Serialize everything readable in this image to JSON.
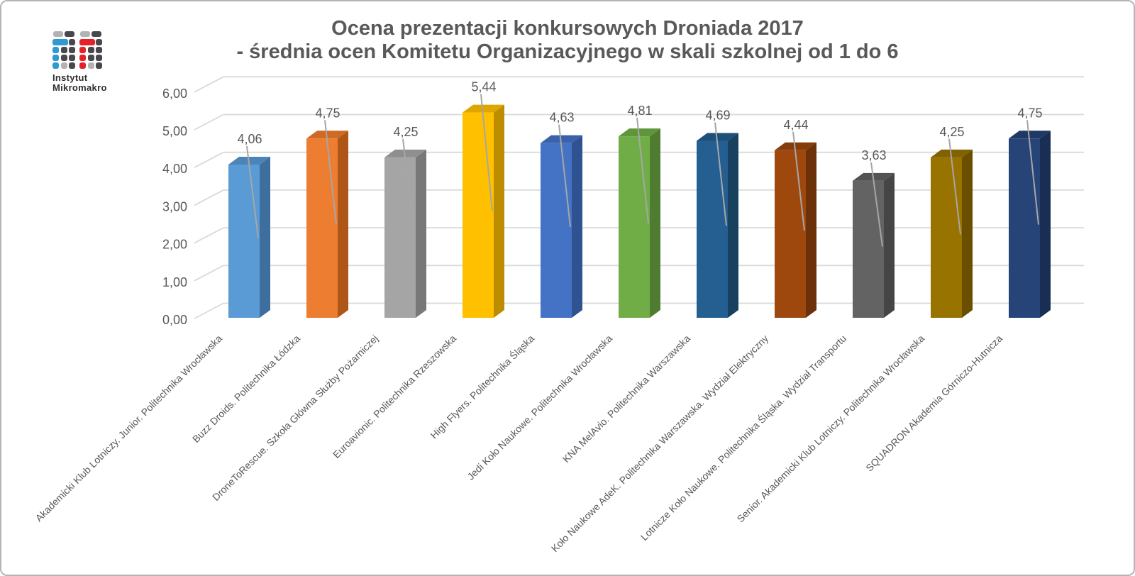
{
  "page": {
    "background": "#ffffff",
    "border_color": "#b5b5b5"
  },
  "logo": {
    "name": "Instytut Mikromakro",
    "line1": "Instytut",
    "line2": "Mikromakro",
    "colors": {
      "blue": "#2E9AD0",
      "red": "#E6212A",
      "light_gray": "#B3B3B6",
      "dark_gray": "#48484C"
    }
  },
  "title": {
    "line1": "Ocena prezentacji konkursowych Droniada 2017",
    "line2": "- średnia ocen Komitetu Organizacyjnego w skali szkolnej od 1 do 6",
    "color": "#595959"
  },
  "chart_data": {
    "type": "bar",
    "style": "3d-column",
    "title": "Ocena prezentacji konkursowych Droniada 2017 - średnia ocen Komitetu Organizacyjnego w skali szkolnej od 1 do 6",
    "categories": [
      "Akademicki Klub Lotniczy. Junior. Politechnika Wrocławska",
      "Buzz Droids. Politechnika Łódzka",
      "DroneToRescue. Szkoła Główna Służby Pożarniczej",
      "Euroavionic. Politechnika Rzeszowska",
      "High Flyers. Politechnika Śląska",
      "Jedi Koło Naukowe. Politechnika Wrocławska",
      "KNA MelAvio. Politechnika Warszawska",
      "Koło Naukowe AdeK. Politechnika Warszawska. Wydział Elektryczny",
      "Lotnicze Koło Naukowe. Politechnika Śląska. Wydział Transportu",
      "Senior. Akademicki Klub Lotniczy. Politechnika Wrocławska",
      "SQUADRON Akademia Górniczo-Hutnicza"
    ],
    "values": [
      4.06,
      4.75,
      4.25,
      5.44,
      4.63,
      4.81,
      4.69,
      4.44,
      3.63,
      4.25,
      4.75
    ],
    "value_labels": [
      "4,06",
      "4,75",
      "4,25",
      "5,44",
      "4,63",
      "4,81",
      "4,69",
      "4,44",
      "3,63",
      "4,25",
      "4,75"
    ],
    "bar_colors": [
      {
        "front": "#5B9BD5",
        "side": "#3D6E9E",
        "top": "#4B84B8"
      },
      {
        "front": "#ED7D31",
        "side": "#AE5518",
        "top": "#CE6A24"
      },
      {
        "front": "#A5A5A5",
        "side": "#787878",
        "top": "#8F8F8F"
      },
      {
        "front": "#FFC000",
        "side": "#BC8D00",
        "top": "#DDA700"
      },
      {
        "front": "#4472C4",
        "side": "#2F5291",
        "top": "#3A62AB"
      },
      {
        "front": "#70AD47",
        "side": "#507C32",
        "top": "#60953C"
      },
      {
        "front": "#255E91",
        "side": "#18405F",
        "top": "#1E4F78"
      },
      {
        "front": "#9E480E",
        "side": "#6D3109",
        "top": "#853C0B"
      },
      {
        "front": "#636363",
        "side": "#454545",
        "top": "#535353"
      },
      {
        "front": "#997300",
        "side": "#6A4F00",
        "top": "#816100"
      },
      {
        "front": "#264478",
        "side": "#192E53",
        "top": "#1F3864"
      }
    ],
    "xlabel": "",
    "ylabel": "",
    "ylim": [
      0,
      6
    ],
    "y_ticks": [
      "0,00",
      "1,00",
      "2,00",
      "3,00",
      "4,00",
      "5,00",
      "6,00"
    ],
    "grid": true,
    "legend": "none",
    "gridline_color": "#D9D9D9",
    "leader_line_color": "#A6A6A6",
    "axis_label_color": "#595959",
    "data_label_color": "#595959",
    "category_label_color": "#595959"
  }
}
